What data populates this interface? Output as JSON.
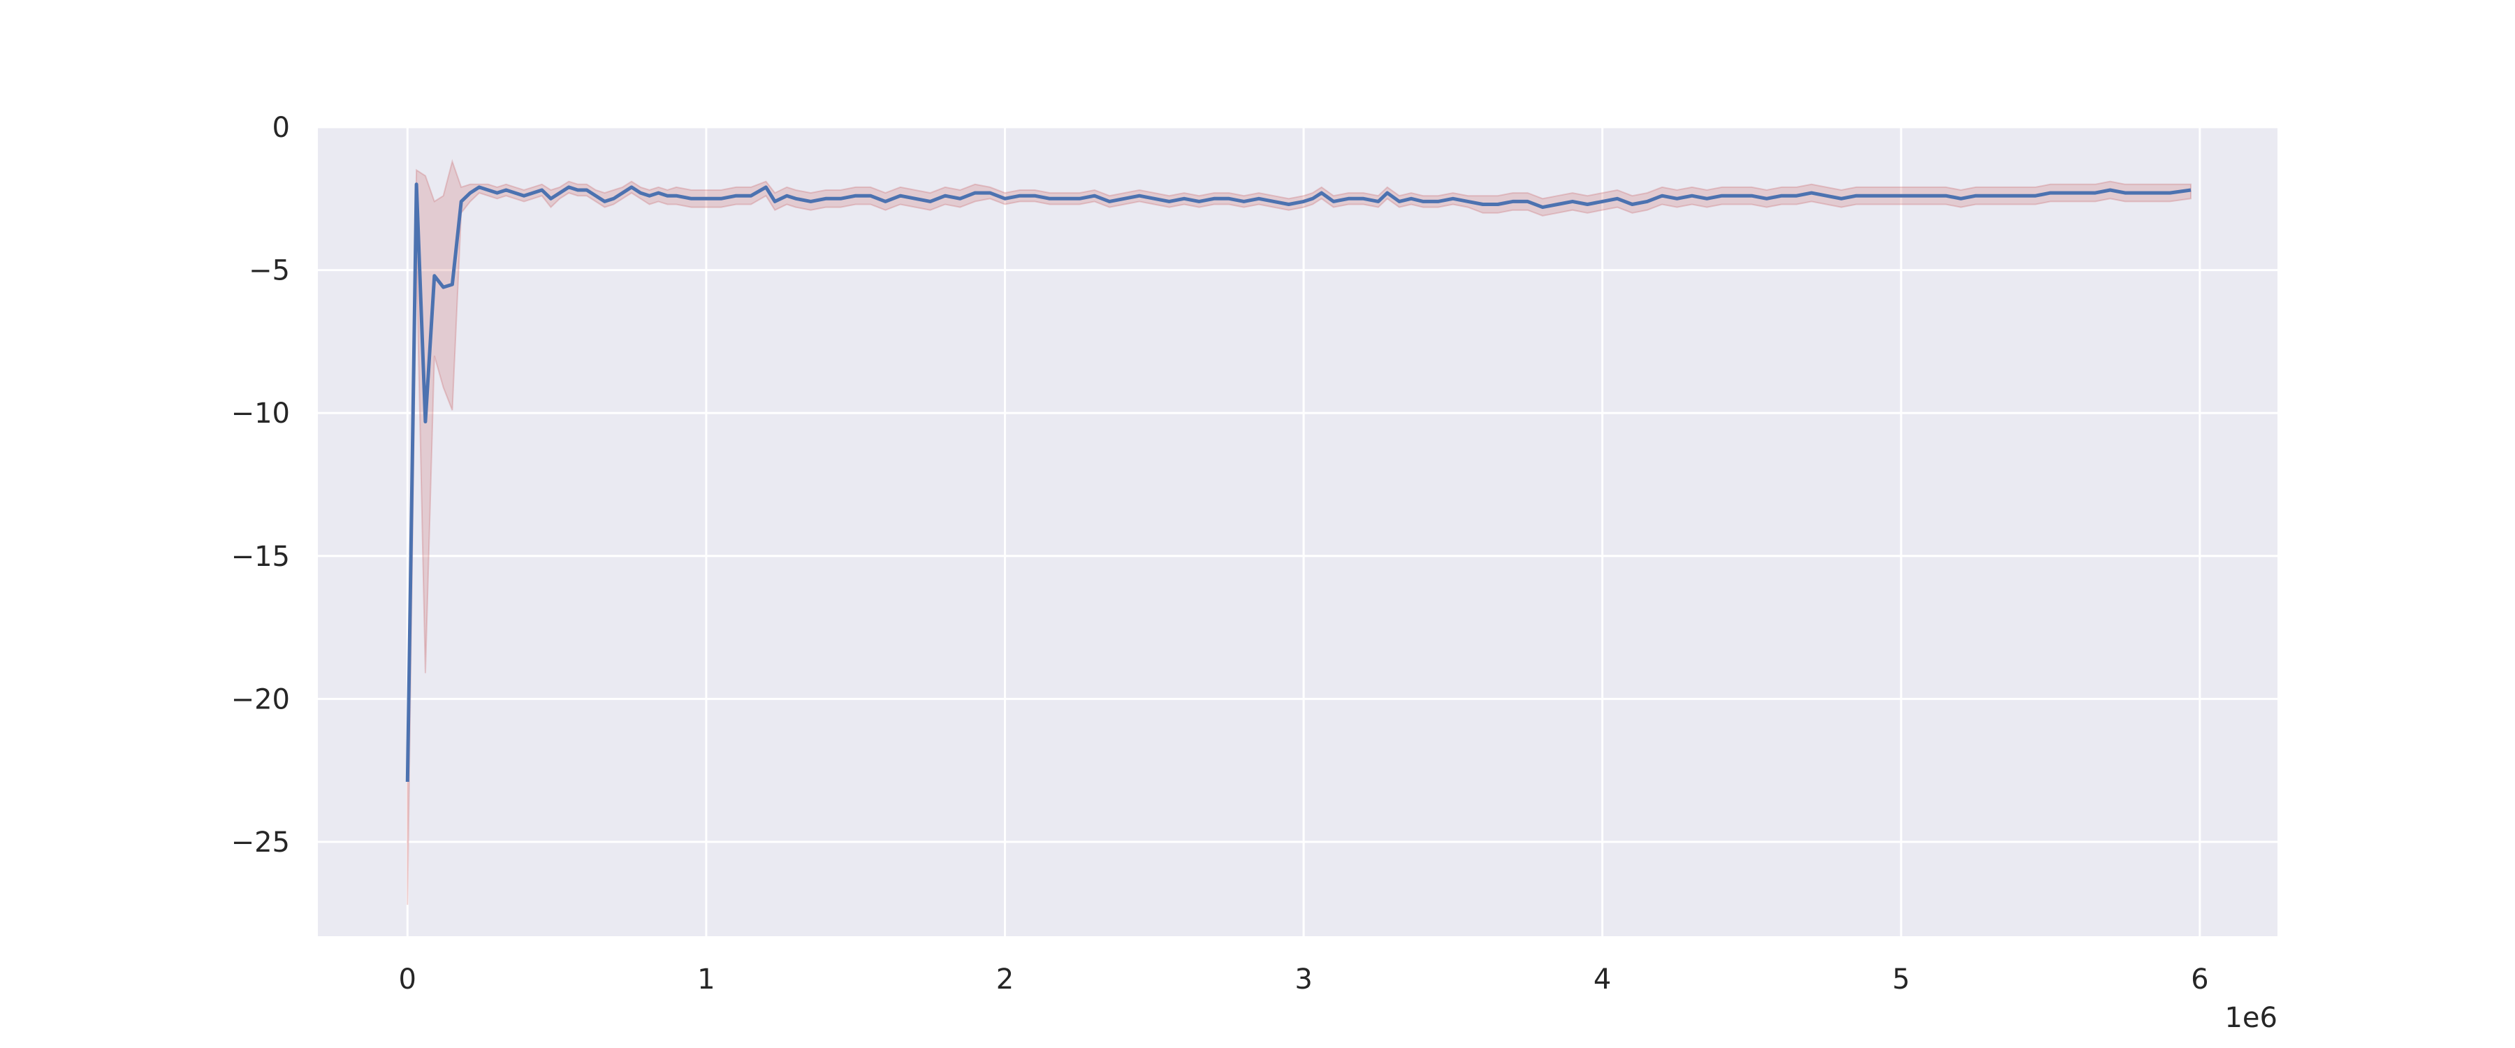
{
  "chart_data": {
    "type": "line",
    "title": "",
    "xlabel": "",
    "ylabel": "",
    "x_offset_label": "1e6",
    "xlim": [
      -0.3,
      6.26
    ],
    "ylim": [
      -28.3,
      0
    ],
    "x_ticks": [
      0,
      1,
      2,
      3,
      4,
      5,
      6
    ],
    "x_tick_labels": [
      "0",
      "1",
      "2",
      "3",
      "4",
      "5",
      "6"
    ],
    "y_ticks": [
      0,
      -5,
      -10,
      -15,
      -20,
      -25
    ],
    "y_tick_labels": [
      "0",
      "−5",
      "−10",
      "−15",
      "−20",
      "−25"
    ],
    "grid": true,
    "legend": "none",
    "colors": {
      "line": "#4c72b0",
      "band": "#c44e52",
      "background": "#eaeaf2",
      "grid": "#ffffff"
    },
    "series": [
      {
        "x": [
          0.0,
          0.03,
          0.06,
          0.09,
          0.12,
          0.15,
          0.18,
          0.21,
          0.24,
          0.27,
          0.3,
          0.33,
          0.36,
          0.39,
          0.42,
          0.45,
          0.48,
          0.51,
          0.54,
          0.57,
          0.6,
          0.63,
          0.66,
          0.69,
          0.72,
          0.75,
          0.78,
          0.81,
          0.84,
          0.87,
          0.9,
          0.95,
          1.0,
          1.05,
          1.1,
          1.15,
          1.2,
          1.23,
          1.27,
          1.3,
          1.35,
          1.4,
          1.45,
          1.5,
          1.55,
          1.6,
          1.65,
          1.7,
          1.75,
          1.8,
          1.85,
          1.9,
          1.95,
          2.0,
          2.05,
          2.1,
          2.15,
          2.2,
          2.25,
          2.3,
          2.35,
          2.4,
          2.45,
          2.5,
          2.55,
          2.6,
          2.65,
          2.7,
          2.75,
          2.8,
          2.85,
          2.9,
          2.95,
          3.0,
          3.03,
          3.06,
          3.1,
          3.15,
          3.2,
          3.25,
          3.28,
          3.32,
          3.36,
          3.4,
          3.45,
          3.5,
          3.55,
          3.6,
          3.65,
          3.7,
          3.75,
          3.8,
          3.85,
          3.9,
          3.95,
          4.0,
          4.05,
          4.1,
          4.15,
          4.2,
          4.25,
          4.3,
          4.35,
          4.4,
          4.45,
          4.5,
          4.55,
          4.6,
          4.65,
          4.7,
          4.75,
          4.8,
          4.85,
          4.9,
          4.95,
          5.0,
          5.05,
          5.1,
          5.15,
          5.2,
          5.25,
          5.3,
          5.35,
          5.4,
          5.45,
          5.5,
          5.55,
          5.6,
          5.65,
          5.7,
          5.75,
          5.8,
          5.85,
          5.9,
          5.97
        ],
        "y": [
          -22.9,
          -2.0,
          -10.3,
          -5.2,
          -5.6,
          -5.5,
          -2.6,
          -2.3,
          -2.1,
          -2.2,
          -2.3,
          -2.2,
          -2.3,
          -2.4,
          -2.3,
          -2.2,
          -2.5,
          -2.3,
          -2.1,
          -2.2,
          -2.2,
          -2.4,
          -2.6,
          -2.5,
          -2.3,
          -2.1,
          -2.3,
          -2.4,
          -2.3,
          -2.4,
          -2.4,
          -2.5,
          -2.5,
          -2.5,
          -2.4,
          -2.4,
          -2.1,
          -2.6,
          -2.4,
          -2.5,
          -2.6,
          -2.5,
          -2.5,
          -2.4,
          -2.4,
          -2.6,
          -2.4,
          -2.5,
          -2.6,
          -2.4,
          -2.5,
          -2.3,
          -2.3,
          -2.5,
          -2.4,
          -2.4,
          -2.5,
          -2.5,
          -2.5,
          -2.4,
          -2.6,
          -2.5,
          -2.4,
          -2.5,
          -2.6,
          -2.5,
          -2.6,
          -2.5,
          -2.5,
          -2.6,
          -2.5,
          -2.6,
          -2.7,
          -2.6,
          -2.5,
          -2.3,
          -2.6,
          -2.5,
          -2.5,
          -2.6,
          -2.3,
          -2.6,
          -2.5,
          -2.6,
          -2.6,
          -2.5,
          -2.6,
          -2.7,
          -2.7,
          -2.6,
          -2.6,
          -2.8,
          -2.7,
          -2.6,
          -2.7,
          -2.6,
          -2.5,
          -2.7,
          -2.6,
          -2.4,
          -2.5,
          -2.4,
          -2.5,
          -2.4,
          -2.4,
          -2.4,
          -2.5,
          -2.4,
          -2.4,
          -2.3,
          -2.4,
          -2.5,
          -2.4,
          -2.4,
          -2.4,
          -2.4,
          -2.4,
          -2.4,
          -2.4,
          -2.5,
          -2.4,
          -2.4,
          -2.4,
          -2.4,
          -2.4,
          -2.3,
          -2.3,
          -2.3,
          -2.3,
          -2.2,
          -2.3,
          -2.3,
          -2.3,
          -2.3,
          -2.2
        ],
        "upper": [
          -22.0,
          -1.5,
          -1.7,
          -2.6,
          -2.4,
          -1.2,
          -2.1,
          -2.0,
          -2.0,
          -2.0,
          -2.1,
          -2.0,
          -2.1,
          -2.2,
          -2.1,
          -2.0,
          -2.2,
          -2.1,
          -1.9,
          -2.0,
          -2.0,
          -2.2,
          -2.3,
          -2.2,
          -2.1,
          -1.9,
          -2.1,
          -2.2,
          -2.1,
          -2.2,
          -2.1,
          -2.2,
          -2.2,
          -2.2,
          -2.1,
          -2.1,
          -1.9,
          -2.3,
          -2.1,
          -2.2,
          -2.3,
          -2.2,
          -2.2,
          -2.1,
          -2.1,
          -2.3,
          -2.1,
          -2.2,
          -2.3,
          -2.1,
          -2.2,
          -2.0,
          -2.1,
          -2.3,
          -2.2,
          -2.2,
          -2.3,
          -2.3,
          -2.3,
          -2.2,
          -2.4,
          -2.3,
          -2.2,
          -2.3,
          -2.4,
          -2.3,
          -2.4,
          -2.3,
          -2.3,
          -2.4,
          -2.3,
          -2.4,
          -2.5,
          -2.4,
          -2.3,
          -2.1,
          -2.4,
          -2.3,
          -2.3,
          -2.4,
          -2.1,
          -2.4,
          -2.3,
          -2.4,
          -2.4,
          -2.3,
          -2.4,
          -2.4,
          -2.4,
          -2.3,
          -2.3,
          -2.5,
          -2.4,
          -2.3,
          -2.4,
          -2.3,
          -2.2,
          -2.4,
          -2.3,
          -2.1,
          -2.2,
          -2.1,
          -2.2,
          -2.1,
          -2.1,
          -2.1,
          -2.2,
          -2.1,
          -2.1,
          -2.0,
          -2.1,
          -2.2,
          -2.1,
          -2.1,
          -2.1,
          -2.1,
          -2.1,
          -2.1,
          -2.1,
          -2.2,
          -2.1,
          -2.1,
          -2.1,
          -2.1,
          -2.1,
          -2.0,
          -2.0,
          -2.0,
          -2.0,
          -1.9,
          -2.0,
          -2.0,
          -2.0,
          -2.0,
          -2.0
        ],
        "lower": [
          -27.2,
          -4.5,
          -19.1,
          -8.0,
          -9.1,
          -9.9,
          -3.0,
          -2.6,
          -2.3,
          -2.4,
          -2.5,
          -2.4,
          -2.5,
          -2.6,
          -2.5,
          -2.4,
          -2.8,
          -2.5,
          -2.3,
          -2.4,
          -2.4,
          -2.6,
          -2.8,
          -2.7,
          -2.5,
          -2.3,
          -2.5,
          -2.7,
          -2.6,
          -2.7,
          -2.7,
          -2.8,
          -2.8,
          -2.8,
          -2.7,
          -2.7,
          -2.4,
          -2.9,
          -2.7,
          -2.8,
          -2.9,
          -2.8,
          -2.8,
          -2.7,
          -2.7,
          -2.9,
          -2.7,
          -2.8,
          -2.9,
          -2.7,
          -2.8,
          -2.6,
          -2.5,
          -2.7,
          -2.6,
          -2.6,
          -2.7,
          -2.7,
          -2.7,
          -2.6,
          -2.8,
          -2.7,
          -2.6,
          -2.7,
          -2.8,
          -2.7,
          -2.8,
          -2.7,
          -2.7,
          -2.8,
          -2.7,
          -2.8,
          -2.9,
          -2.8,
          -2.7,
          -2.5,
          -2.8,
          -2.7,
          -2.7,
          -2.8,
          -2.5,
          -2.8,
          -2.7,
          -2.8,
          -2.8,
          -2.7,
          -2.8,
          -3.0,
          -3.0,
          -2.9,
          -2.9,
          -3.1,
          -3.0,
          -2.9,
          -3.0,
          -2.9,
          -2.8,
          -3.0,
          -2.9,
          -2.7,
          -2.8,
          -2.7,
          -2.8,
          -2.7,
          -2.7,
          -2.7,
          -2.8,
          -2.7,
          -2.7,
          -2.6,
          -2.7,
          -2.8,
          -2.7,
          -2.7,
          -2.7,
          -2.7,
          -2.7,
          -2.7,
          -2.7,
          -2.8,
          -2.7,
          -2.7,
          -2.7,
          -2.7,
          -2.7,
          -2.6,
          -2.6,
          -2.6,
          -2.6,
          -2.5,
          -2.6,
          -2.6,
          -2.6,
          -2.6,
          -2.5
        ]
      }
    ]
  }
}
